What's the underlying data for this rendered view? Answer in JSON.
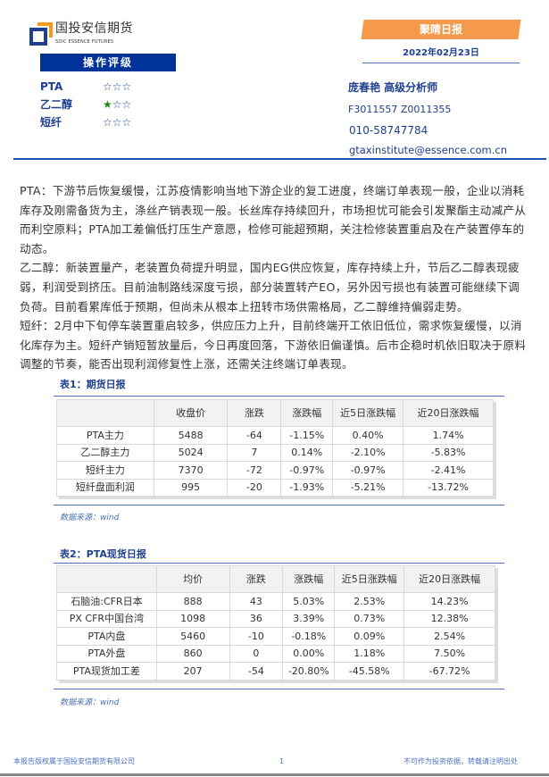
{
  "header": {
    "logo_cn": "国投安信期货",
    "logo_en": "SDIC ESSENCE FUTURES",
    "banner": "聚睛日报",
    "date": "2022年02月23日"
  },
  "rating": {
    "title": "操作评级",
    "items": [
      {
        "name": "PTA",
        "stars_filled": 0,
        "stars_total": 3,
        "color": "#1f3f8f"
      },
      {
        "name": "乙二醇",
        "stars_filled": 1,
        "stars_total": 3,
        "color": "#1a8a1a"
      },
      {
        "name": "短纤",
        "stars_filled": 0,
        "stars_total": 3,
        "color": "#1f3f8f"
      }
    ]
  },
  "analyst": {
    "name": "庞春艳 高级分析师",
    "codes": "F3011557 Z0011355",
    "phone": "010-58747784",
    "email": "gtaxinstitute@essence.com.cn"
  },
  "body": {
    "paragraphs": [
      "PTA：下游节后恢复缓慢，江苏疫情影响当地下游企业的复工进度，终端订单表现一般，企业以消耗库存及刚需备货为主，涤丝产销表现一般。长丝库存持续回升，市场担忧可能会引发聚酯主动减产从而利空原料；PTA加工差偏低打压生产意愿，检修可能超预期，关注检修装置重启及在产装置停车的动态。",
      "乙二醇：新装置量产，老装置负荷提升明显，国内EG供应恢复，库存持续上升，节后乙二醇表现疲弱，利润受到挤压。目前油制路线深度亏损，部分装置转产EO，另外因亏损也有装置可能继续下调负荷。目前看累库低于预期，但尚未从根本上扭转市场供需格局，乙二醇维持偏弱走势。",
      "短纤：2月中下旬停车装置重启较多，供应压力上升，目前终端开工依旧低位，需求恢复缓慢，以消化库存为主。短纤产销短暂放量后，今日再度回落，下游依旧偏谨慎。后市企稳时机依旧取决于原料调整的节奏，能否出现利润修复性上涨，还需关注终端订单表现。"
    ]
  },
  "table1": {
    "title": "表1：期货日报",
    "headers": [
      "",
      "收盘价",
      "涨跌",
      "涨跌幅",
      "近5日涨跌幅",
      "近20日涨跌幅"
    ],
    "rows": [
      [
        "PTA主力",
        "5488",
        "-64",
        "-1.15%",
        "0.40%",
        "1.74%"
      ],
      [
        "乙二醇主力",
        "5024",
        "7",
        "0.14%",
        "-2.10%",
        "-5.83%"
      ],
      [
        "短纤主力",
        "7370",
        "-72",
        "-0.97%",
        "-0.97%",
        "-2.41%"
      ],
      [
        "短纤盘面利润",
        "995",
        "-20",
        "-1.93%",
        "-5.21%",
        "-13.72%"
      ]
    ],
    "source": "数据来源：wind"
  },
  "table2": {
    "title": "表2：PTA现货日报",
    "headers": [
      "",
      "均价",
      "涨跌",
      "涨跌幅",
      "近5日涨跌幅",
      "近20日涨跌幅"
    ],
    "rows": [
      [
        "石脑油:CFR日本",
        "888",
        "43",
        "5.03%",
        "2.53%",
        "14.23%"
      ],
      [
        "PX CFR中国台湾",
        "1098",
        "36",
        "3.39%",
        "0.73%",
        "12.38%"
      ],
      [
        "PTA内盘",
        "5460",
        "-10",
        "-0.18%",
        "0.09%",
        "2.54%"
      ],
      [
        "PTA外盘",
        "860",
        "0",
        "0.00%",
        "1.18%",
        "7.50%"
      ],
      [
        "PTA现货加工差",
        "207",
        "-54",
        "-20.80%",
        "-45.58%",
        "-67.72%"
      ]
    ],
    "source": "数据来源：wind"
  },
  "footer": {
    "left": "本报告版权属于国投安信期货有限公司",
    "page": "1",
    "right": "不可作为投资依据，转载请注明出处"
  },
  "colors": {
    "brand_blue": "#003399",
    "banner_orange": "#f59a4a"
  }
}
